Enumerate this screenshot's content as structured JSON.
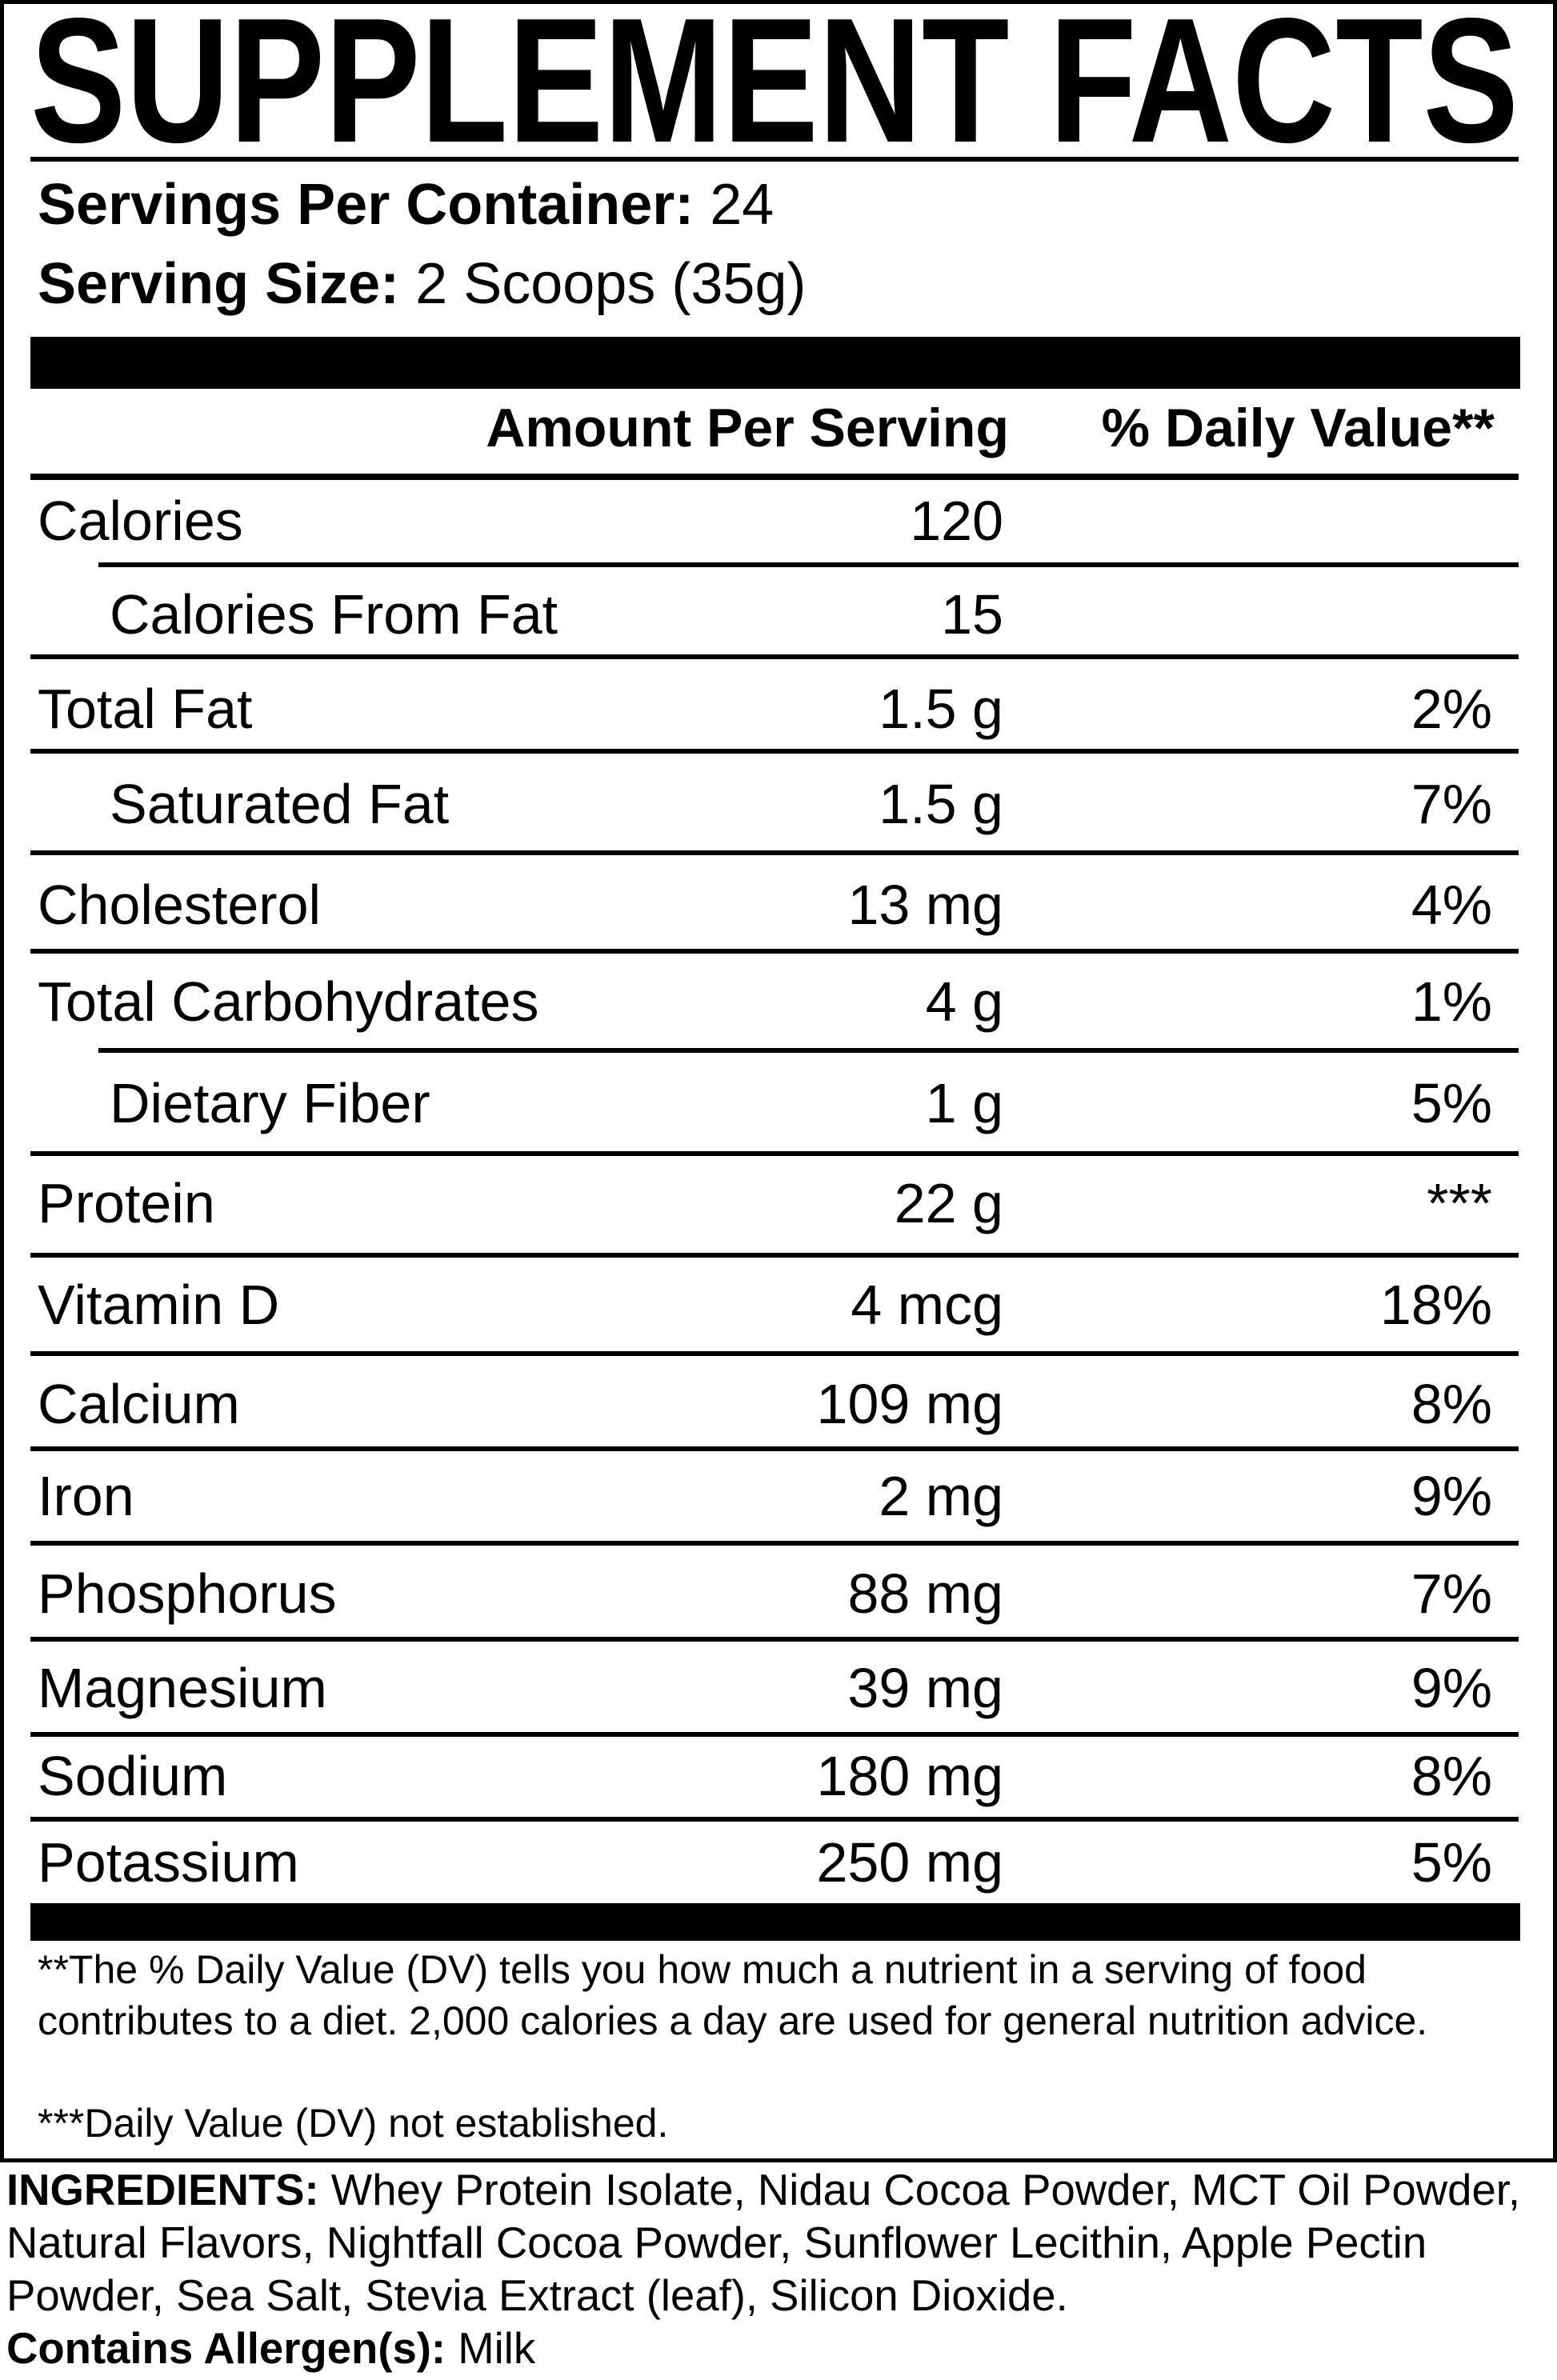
{
  "title": "SUPPLEMENT FACTS",
  "servings": {
    "per_container_label": "Servings Per Container:",
    "per_container_value": "24",
    "size_label": "Serving Size:",
    "size_value": "2 Scoops (35g)"
  },
  "header": {
    "amount": "Amount Per Serving",
    "dv": "% Daily Value**"
  },
  "rows": [
    {
      "label": "Calories",
      "amount": "120",
      "dv": "",
      "indent": false
    },
    {
      "label": "Calories From Fat",
      "amount": "15",
      "dv": "",
      "indent": true
    },
    {
      "label": "Total Fat",
      "amount": "1.5 g",
      "dv": "2%",
      "indent": false
    },
    {
      "label": "Saturated Fat",
      "amount": "1.5 g",
      "dv": "7%",
      "indent": true
    },
    {
      "label": "Cholesterol",
      "amount": "13 mg",
      "dv": "4%",
      "indent": false
    },
    {
      "label": "Total Carbohydrates",
      "amount": "4 g",
      "dv": "1%",
      "indent": false
    },
    {
      "label": "Dietary Fiber",
      "amount": "1 g",
      "dv": "5%",
      "indent": true
    },
    {
      "label": "Protein",
      "amount": "22 g",
      "dv": "***",
      "indent": false
    },
    {
      "label": "Vitamin D",
      "amount": "4 mcg",
      "dv": "18%",
      "indent": false
    },
    {
      "label": "Calcium",
      "amount": "109 mg",
      "dv": "8%",
      "indent": false
    },
    {
      "label": "Iron",
      "amount": "2 mg",
      "dv": "9%",
      "indent": false
    },
    {
      "label": "Phosphorus",
      "amount": "88 mg",
      "dv": "7%",
      "indent": false
    },
    {
      "label": "Magnesium",
      "amount": "39 mg",
      "dv": "9%",
      "indent": false
    },
    {
      "label": "Sodium",
      "amount": "180 mg",
      "dv": "8%",
      "indent": false
    },
    {
      "label": "Potassium",
      "amount": "250 mg",
      "dv": "5%",
      "indent": false
    }
  ],
  "footnotes": {
    "dv_note": "**The % Daily Value (DV) tells you how much a nutrient in a serving of food contributes to a diet. 2,000 calories a day are used for general nutrition advice.",
    "not_established": "***Daily Value (DV) not established."
  },
  "ingredients": {
    "label": "INGREDIENTS:",
    "text": " Whey Protein Isolate, Nidau Cocoa Powder, MCT Oil Powder, Natural Flavors, Nightfall Cocoa Powder, Sunflower Lecithin, Apple Pectin Powder, Sea Salt, Stevia Extract (leaf), Silicon Dioxide.",
    "allergen_label": "Contains Allergen(s):",
    "allergen_value": " Milk"
  }
}
